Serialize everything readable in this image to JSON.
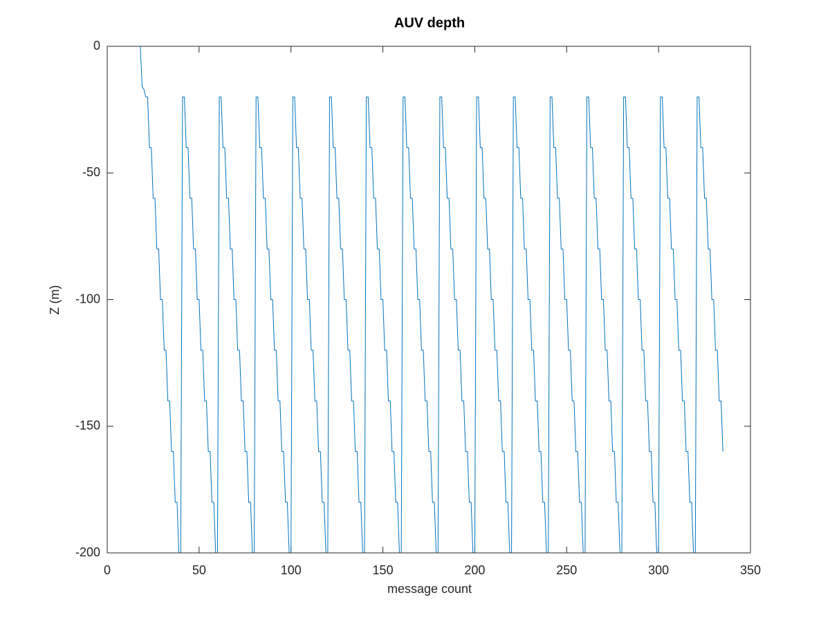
{
  "chart_data": {
    "type": "line",
    "title": "AUV depth",
    "x_label": "message count",
    "y_label": "Z (m)",
    "xlim": [
      0,
      350
    ],
    "xticks": [
      0,
      50,
      100,
      150,
      200,
      250,
      300,
      350
    ],
    "ylim": [
      -200,
      0
    ],
    "yticks": [
      -200,
      -150,
      -100,
      -50,
      0
    ],
    "grid": false,
    "x": [
      1,
      2,
      3,
      4,
      5,
      6,
      7,
      8,
      9,
      10,
      11,
      12,
      13,
      14,
      15,
      16,
      17,
      18,
      19,
      20,
      21,
      22,
      23,
      24,
      25,
      26,
      27,
      28,
      29,
      30,
      31,
      32,
      33,
      34,
      35,
      36,
      37,
      38,
      39,
      40,
      41,
      42,
      43,
      44,
      45,
      46,
      47,
      48,
      49,
      50,
      51,
      52,
      53,
      54,
      55,
      56,
      57,
      58,
      59,
      60,
      61,
      62,
      63,
      64,
      65,
      66,
      67,
      68,
      69,
      70,
      71,
      72,
      73,
      74,
      75,
      76,
      77,
      78,
      79,
      80,
      81,
      82,
      83,
      84,
      85,
      86,
      87,
      88,
      89,
      90,
      91,
      92,
      93,
      94,
      95,
      96,
      97,
      98,
      99,
      100,
      101,
      102,
      103,
      104,
      105,
      106,
      107,
      108,
      109,
      110,
      111,
      112,
      113,
      114,
      115,
      116,
      117,
      118,
      119,
      120,
      121,
      122,
      123,
      124,
      125,
      126,
      127,
      128,
      129,
      130,
      131,
      132,
      133,
      134,
      135,
      136,
      137,
      138,
      139,
      140,
      141,
      142,
      143,
      144,
      145,
      146,
      147,
      148,
      149,
      150,
      151,
      152,
      153,
      154,
      155,
      156,
      157,
      158,
      159,
      160,
      161,
      162,
      163,
      164,
      165,
      166,
      167,
      168,
      169,
      170,
      171,
      172,
      173,
      174,
      175,
      176,
      177,
      178,
      179,
      180,
      181,
      182,
      183,
      184,
      185,
      186,
      187,
      188,
      189,
      190,
      191,
      192,
      193,
      194,
      195,
      196,
      197,
      198,
      199,
      200,
      201,
      202,
      203,
      204,
      205,
      206,
      207,
      208,
      209,
      210,
      211,
      212,
      213,
      214,
      215,
      216,
      217,
      218,
      219,
      220,
      221,
      222,
      223,
      224,
      225,
      226,
      227,
      228,
      229,
      230,
      231,
      232,
      233,
      234,
      235,
      236,
      237,
      238,
      239,
      240,
      241,
      242,
      243,
      244,
      245,
      246,
      247,
      248,
      249,
      250,
      251,
      252,
      253,
      254,
      255,
      256,
      257,
      258,
      259,
      260,
      261,
      262,
      263,
      264,
      265,
      266,
      267,
      268,
      269,
      270,
      271,
      272,
      273,
      274,
      275,
      276,
      277,
      278,
      279,
      280,
      281,
      282,
      283,
      284,
      285,
      286,
      287,
      288,
      289,
      290,
      291,
      292,
      293,
      294,
      295,
      296,
      297,
      298,
      299,
      300,
      301,
      302,
      303,
      304,
      305,
      306,
      307,
      308,
      309,
      310,
      311,
      312,
      313,
      314,
      315,
      316,
      317,
      318,
      319,
      320,
      321,
      322,
      323,
      324,
      325,
      326,
      327,
      328,
      329,
      330,
      331,
      332,
      333,
      334,
      335
    ],
    "series": [
      {
        "color": "#0072bd",
        "values": [
          0,
          0,
          0,
          0,
          0,
          0,
          0,
          0,
          0,
          0,
          0,
          0,
          0,
          0,
          0,
          0,
          0,
          0,
          -16,
          -17,
          -20,
          -20,
          -40,
          -40,
          -60,
          -60,
          -80,
          -80,
          -100,
          -100,
          -120,
          -120,
          -140,
          -140,
          -160,
          -160,
          -180,
          -180,
          -200,
          -200,
          -20,
          -20,
          -40,
          -40,
          -60,
          -60,
          -80,
          -80,
          -100,
          -100,
          -120,
          -120,
          -140,
          -140,
          -160,
          -160,
          -180,
          -180,
          -200,
          -200,
          -20,
          -20,
          -40,
          -40,
          -60,
          -60,
          -80,
          -80,
          -100,
          -100,
          -120,
          -120,
          -140,
          -140,
          -160,
          -160,
          -180,
          -180,
          -200,
          -200,
          -20,
          -20,
          -40,
          -40,
          -60,
          -60,
          -80,
          -80,
          -100,
          -100,
          -120,
          -120,
          -140,
          -140,
          -160,
          -160,
          -180,
          -180,
          -200,
          -200,
          -20,
          -20,
          -40,
          -40,
          -60,
          -60,
          -80,
          -80,
          -100,
          -100,
          -120,
          -120,
          -140,
          -140,
          -160,
          -160,
          -180,
          -180,
          -200,
          -200,
          -20,
          -20,
          -40,
          -40,
          -60,
          -60,
          -80,
          -80,
          -100,
          -100,
          -120,
          -120,
          -140,
          -140,
          -160,
          -160,
          -180,
          -180,
          -200,
          -200,
          -20,
          -20,
          -40,
          -40,
          -60,
          -60,
          -80,
          -80,
          -100,
          -100,
          -120,
          -120,
          -140,
          -140,
          -160,
          -160,
          -180,
          -180,
          -200,
          -200,
          -20,
          -20,
          -40,
          -40,
          -60,
          -60,
          -80,
          -80,
          -100,
          -100,
          -120,
          -120,
          -140,
          -140,
          -160,
          -160,
          -180,
          -180,
          -200,
          -200,
          -20,
          -20,
          -40,
          -40,
          -60,
          -60,
          -80,
          -80,
          -100,
          -100,
          -120,
          -120,
          -140,
          -140,
          -160,
          -160,
          -180,
          -180,
          -200,
          -200,
          -20,
          -20,
          -40,
          -40,
          -60,
          -60,
          -80,
          -80,
          -100,
          -100,
          -120,
          -120,
          -140,
          -140,
          -160,
          -160,
          -180,
          -180,
          -200,
          -200,
          -20,
          -20,
          -40,
          -40,
          -60,
          -60,
          -80,
          -80,
          -100,
          -100,
          -120,
          -120,
          -140,
          -140,
          -160,
          -160,
          -180,
          -180,
          -200,
          -200,
          -20,
          -20,
          -40,
          -40,
          -60,
          -60,
          -80,
          -80,
          -100,
          -100,
          -120,
          -120,
          -140,
          -140,
          -160,
          -160,
          -180,
          -180,
          -200,
          -200,
          -20,
          -20,
          -40,
          -40,
          -60,
          -60,
          -80,
          -80,
          -100,
          -100,
          -120,
          -120,
          -140,
          -140,
          -160,
          -160,
          -180,
          -180,
          -200,
          -200,
          -20,
          -20,
          -40,
          -40,
          -60,
          -60,
          -80,
          -80,
          -100,
          -100,
          -120,
          -120,
          -140,
          -140,
          -160,
          -160,
          -180,
          -180,
          -200,
          -200,
          -20,
          -20,
          -40,
          -40,
          -60,
          -60,
          -80,
          -80,
          -100,
          -100,
          -120,
          -120,
          -140,
          -140,
          -160,
          -160,
          -180,
          -180,
          -200,
          -200,
          -20,
          -20,
          -40,
          -40,
          -60,
          -60,
          -80,
          -80,
          -100,
          -100,
          -120,
          -120,
          -140,
          -140,
          -160
        ]
      }
    ]
  }
}
